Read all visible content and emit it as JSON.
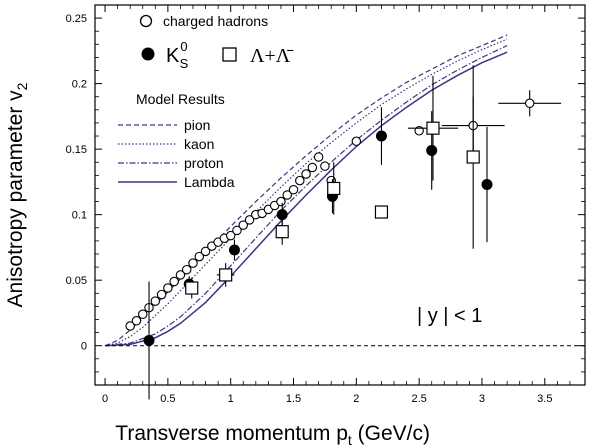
{
  "chart_data": {
    "type": "scatter",
    "xlabel_main": "Transverse momentum p",
    "xlabel_sub": "t",
    "xlabel_unit": " (GeV/c)",
    "ylabel_main": "Anisotropy parameter v",
    "ylabel_sub": "2",
    "xlim": [
      -0.08,
      3.82
    ],
    "ylim": [
      -0.03,
      0.26
    ],
    "x_ticks": [
      0,
      0.5,
      1,
      1.5,
      2,
      2.5,
      3,
      3.5
    ],
    "x_tick_labels": [
      "0",
      "0.5",
      "1",
      "1.5",
      "2",
      "2.5",
      "3",
      "3.5"
    ],
    "y_ticks": [
      0,
      0.05,
      0.1,
      0.15,
      0.2,
      0.25
    ],
    "y_tick_labels": [
      "0",
      "0.05",
      "0.1",
      "0.15",
      "0.2",
      "0.25"
    ],
    "annotation": "| y | < 1",
    "legend": {
      "charged_hadrons": "charged hadrons",
      "kshort_main": "K",
      "kshort_sup": "0",
      "kshort_sub": "S",
      "lambda": "Λ+Λ̄",
      "model_header": "Model Results",
      "pion": "pion",
      "kaon": "kaon",
      "proton": "proton",
      "lambda_model": "Lambda"
    },
    "series": [
      {
        "name": "charged hadrons",
        "marker": "open-circle",
        "points": [
          {
            "x": 0.2,
            "y": 0.015
          },
          {
            "x": 0.25,
            "y": 0.019
          },
          {
            "x": 0.3,
            "y": 0.024
          },
          {
            "x": 0.35,
            "y": 0.029
          },
          {
            "x": 0.4,
            "y": 0.034
          },
          {
            "x": 0.45,
            "y": 0.039
          },
          {
            "x": 0.5,
            "y": 0.044
          },
          {
            "x": 0.55,
            "y": 0.049
          },
          {
            "x": 0.6,
            "y": 0.054
          },
          {
            "x": 0.65,
            "y": 0.058
          },
          {
            "x": 0.7,
            "y": 0.063
          },
          {
            "x": 0.75,
            "y": 0.068
          },
          {
            "x": 0.8,
            "y": 0.072
          },
          {
            "x": 0.85,
            "y": 0.076
          },
          {
            "x": 0.9,
            "y": 0.079
          },
          {
            "x": 0.95,
            "y": 0.082
          },
          {
            "x": 1.0,
            "y": 0.084
          },
          {
            "x": 1.05,
            "y": 0.088
          },
          {
            "x": 1.1,
            "y": 0.092
          },
          {
            "x": 1.15,
            "y": 0.096
          },
          {
            "x": 1.2,
            "y": 0.1
          },
          {
            "x": 1.25,
            "y": 0.101
          },
          {
            "x": 1.3,
            "y": 0.104
          },
          {
            "x": 1.35,
            "y": 0.107
          },
          {
            "x": 1.4,
            "y": 0.11
          },
          {
            "x": 1.45,
            "y": 0.115
          },
          {
            "x": 1.5,
            "y": 0.119
          },
          {
            "x": 1.55,
            "y": 0.126
          },
          {
            "x": 1.6,
            "y": 0.131
          },
          {
            "x": 1.65,
            "y": 0.136
          },
          {
            "x": 1.7,
            "y": 0.144
          },
          {
            "x": 1.75,
            "y": 0.137
          },
          {
            "x": 1.8,
            "y": 0.126
          },
          {
            "x": 2.0,
            "y": 0.156
          },
          {
            "x": 2.5,
            "y": 0.164
          },
          {
            "x": 2.93,
            "y": 0.168,
            "xerr": 0.25,
            "yerr": 0.022
          },
          {
            "x": 3.38,
            "y": 0.185,
            "xerr": 0.25,
            "yerr": 0.01
          }
        ]
      },
      {
        "name": "K0S",
        "marker": "filled-circle",
        "points": [
          {
            "x": 0.35,
            "y": 0.004,
            "yerr": 0.045
          },
          {
            "x": 0.67,
            "y": 0.047,
            "yerr": 0.006
          },
          {
            "x": 1.03,
            "y": 0.073,
            "yerr": 0.008
          },
          {
            "x": 1.41,
            "y": 0.1,
            "yerr": 0.009
          },
          {
            "x": 1.81,
            "y": 0.114,
            "yerr": 0.013
          },
          {
            "x": 2.2,
            "y": 0.16,
            "yerr": 0.022
          },
          {
            "x": 2.6,
            "y": 0.149,
            "yerr": 0.03
          },
          {
            "x": 3.04,
            "y": 0.123,
            "yerr": 0.044
          }
        ]
      },
      {
        "name": "Λ+Λ̄",
        "marker": "open-square",
        "points": [
          {
            "x": 0.69,
            "y": 0.044,
            "xerr": 0.05,
            "yerr": 0.008
          },
          {
            "x": 0.96,
            "y": 0.054,
            "xerr": 0.07,
            "yerr": 0.009
          },
          {
            "x": 1.41,
            "y": 0.087,
            "yerr": 0.01
          },
          {
            "x": 1.82,
            "y": 0.12,
            "yerr": 0.02
          },
          {
            "x": 2.2,
            "y": 0.102
          },
          {
            "x": 2.61,
            "y": 0.166,
            "xerr": 0.2,
            "yerr": 0.04
          },
          {
            "x": 2.93,
            "y": 0.144,
            "yerr": 0.07
          }
        ]
      }
    ],
    "model_curves": [
      {
        "name": "pion",
        "dash": "dashed",
        "x": [
          0,
          0.1,
          0.2,
          0.3,
          0.4,
          0.5,
          0.6,
          0.8,
          1.0,
          1.2,
          1.4,
          1.6,
          1.8,
          2.0,
          2.2,
          2.4,
          2.6,
          2.8,
          3.0,
          3.2
        ],
        "y": [
          0,
          0.004,
          0.012,
          0.021,
          0.031,
          0.041,
          0.051,
          0.071,
          0.091,
          0.11,
          0.128,
          0.145,
          0.161,
          0.176,
          0.189,
          0.201,
          0.211,
          0.221,
          0.229,
          0.237
        ]
      },
      {
        "name": "kaon",
        "dash": "dotted",
        "x": [
          0,
          0.1,
          0.2,
          0.3,
          0.4,
          0.5,
          0.6,
          0.8,
          1.0,
          1.2,
          1.4,
          1.6,
          1.8,
          2.0,
          2.2,
          2.4,
          2.6,
          2.8,
          3.0,
          3.2
        ],
        "y": [
          0,
          0.002,
          0.007,
          0.014,
          0.023,
          0.032,
          0.042,
          0.062,
          0.082,
          0.102,
          0.121,
          0.139,
          0.155,
          0.17,
          0.184,
          0.196,
          0.207,
          0.217,
          0.226,
          0.234
        ]
      },
      {
        "name": "proton",
        "dash": "dashdot",
        "x": [
          0,
          0.2,
          0.4,
          0.5,
          0.6,
          0.8,
          1.0,
          1.2,
          1.4,
          1.6,
          1.8,
          2.0,
          2.2,
          2.4,
          2.6,
          2.8,
          3.0,
          3.2
        ],
        "y": [
          0,
          0.002,
          0.009,
          0.015,
          0.022,
          0.04,
          0.061,
          0.082,
          0.103,
          0.122,
          0.14,
          0.157,
          0.172,
          0.186,
          0.199,
          0.21,
          0.22,
          0.229
        ]
      },
      {
        "name": "Lambda",
        "dash": "solid",
        "x": [
          0,
          0.2,
          0.4,
          0.5,
          0.6,
          0.8,
          1.0,
          1.2,
          1.4,
          1.6,
          1.8,
          2.0,
          2.2,
          2.4,
          2.6,
          2.8,
          3.0,
          3.2
        ],
        "y": [
          0,
          0.001,
          0.006,
          0.011,
          0.017,
          0.033,
          0.053,
          0.074,
          0.095,
          0.115,
          0.134,
          0.152,
          0.168,
          0.182,
          0.195,
          0.206,
          0.216,
          0.224
        ]
      }
    ],
    "reference_line": {
      "y": 0,
      "style": "dashed"
    },
    "legend_placement": "top-left",
    "grid": false
  },
  "colors": {
    "model": "#3a3585",
    "data": "#000000"
  }
}
